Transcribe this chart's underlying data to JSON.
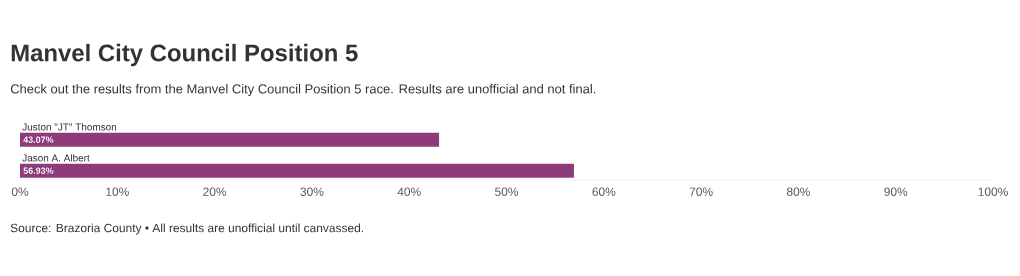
{
  "chart_data": {
    "type": "bar",
    "orientation": "horizontal",
    "title": "Manvel City Council Position 5",
    "subtitle": "Check out the results from the Manvel City Council Position 5 race. Results are unofficial and not final.",
    "categories": [
      "Juston \"JT\" Thomson",
      "Jason A. Albert"
    ],
    "values": [
      43.07,
      56.93
    ],
    "value_labels": [
      "43.07%",
      "56.93%"
    ],
    "color": "#8e3b7a",
    "xlim": [
      0,
      100
    ],
    "xticks": [
      {
        "value": 0,
        "label": "0%"
      },
      {
        "value": 10,
        "label": "10%"
      },
      {
        "value": 20,
        "label": "20%"
      },
      {
        "value": 30,
        "label": "30%"
      },
      {
        "value": 40,
        "label": "40%"
      },
      {
        "value": 50,
        "label": "50%"
      },
      {
        "value": 60,
        "label": "60%"
      },
      {
        "value": 70,
        "label": "70%"
      },
      {
        "value": 80,
        "label": "80%"
      },
      {
        "value": 90,
        "label": "90%"
      },
      {
        "value": 100,
        "label": "100%"
      }
    ],
    "annotations": [
      "Source: Brazoria County • All results are unofficial until canvassed."
    ]
  }
}
